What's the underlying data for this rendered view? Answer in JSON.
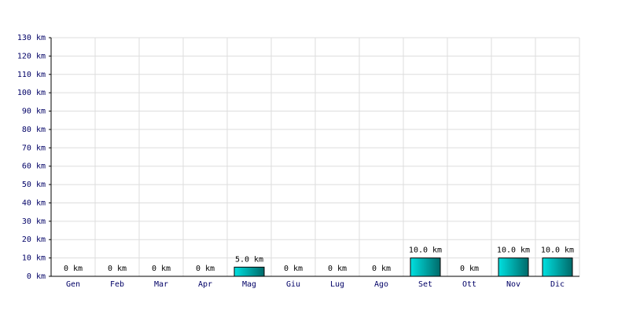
{
  "chart_data": {
    "type": "bar",
    "categories": [
      "Gen",
      "Feb",
      "Mar",
      "Apr",
      "Mag",
      "Giu",
      "Lug",
      "Ago",
      "Set",
      "Ott",
      "Nov",
      "Dic"
    ],
    "values": [
      0,
      0,
      0,
      0,
      5,
      0,
      0,
      0,
      10,
      0,
      10,
      10
    ],
    "value_labels": [
      "0 km",
      "0 km",
      "0 km",
      "0 km",
      "5.0 km",
      "0 km",
      "0 km",
      "0 km",
      "10.0 km",
      "0 km",
      "10.0 km",
      "10.0 km"
    ],
    "color": "#00e0e0",
    "ylim": [
      0,
      130
    ],
    "yticks": [
      {
        "value": 0,
        "label": "0 km"
      },
      {
        "value": 10,
        "label": "10 km"
      },
      {
        "value": 20,
        "label": "20 km"
      },
      {
        "value": 30,
        "label": "30 km"
      },
      {
        "value": 40,
        "label": "40 km"
      },
      {
        "value": 50,
        "label": "50 km"
      },
      {
        "value": 60,
        "label": "60 km"
      },
      {
        "value": 70,
        "label": "70 km"
      },
      {
        "value": 80,
        "label": "80 km"
      },
      {
        "value": 90,
        "label": "90 km"
      },
      {
        "value": 100,
        "label": "100 km"
      },
      {
        "value": 110,
        "label": "110 km"
      },
      {
        "value": 120,
        "label": "120 km"
      },
      {
        "value": 130,
        "label": "130 km"
      }
    ],
    "grid": true
  }
}
